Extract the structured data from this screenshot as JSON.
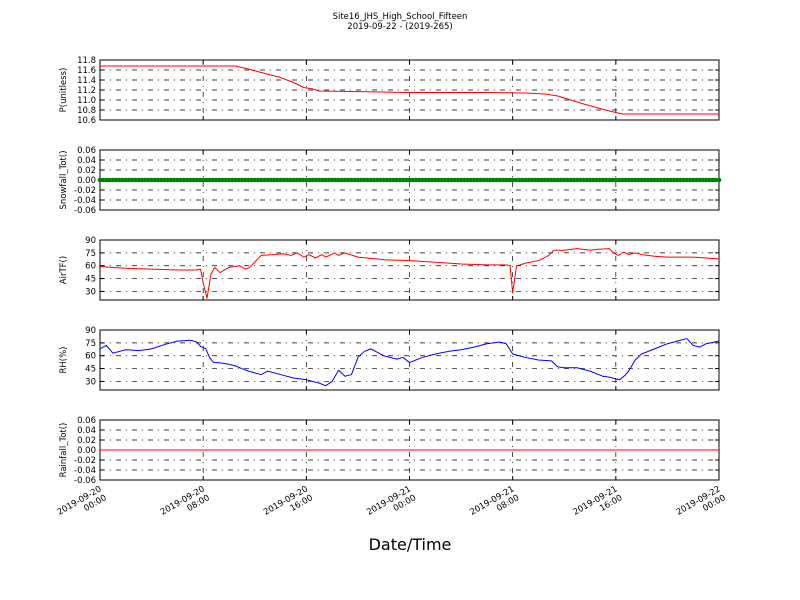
{
  "figure": {
    "title_line1": "Site16_JHS_High_School_Fifteen",
    "title_line2": "2019-09-22 - (2019-265)",
    "xlabel": "Date/Time"
  },
  "x_ticks": [
    {
      "line1": "2019-09-20",
      "line2": "00:00",
      "hours": 0
    },
    {
      "line1": "2019-09-20",
      "line2": "08:00",
      "hours": 8
    },
    {
      "line1": "2019-09-20",
      "line2": "16:00",
      "hours": 16
    },
    {
      "line1": "2019-09-21",
      "line2": "00:00",
      "hours": 24
    },
    {
      "line1": "2019-09-21",
      "line2": "08:00",
      "hours": 32
    },
    {
      "line1": "2019-09-21",
      "line2": "16:00",
      "hours": 40
    },
    {
      "line1": "2019-09-22",
      "line2": "00:00",
      "hours": 48
    }
  ],
  "colors": {
    "red": "#ff0000",
    "green": "#008000",
    "blue": "#0000ff",
    "grid": "#000000"
  },
  "chart_data": [
    {
      "type": "line",
      "ylabel": "P(unitless)",
      "ylim": [
        10.6,
        11.8
      ],
      "yticks": [
        "11.8",
        "11.6",
        "11.4",
        "11.2",
        "11.0",
        "10.8",
        "10.6"
      ],
      "grid": true,
      "series": [
        {
          "color": "#ff0000",
          "x": [
            0,
            10.5,
            11.5,
            12.5,
            14,
            15,
            15.8,
            16.5,
            17,
            24,
            30,
            33,
            34.5,
            35.5,
            36.5,
            37.5,
            38.5,
            39.5,
            40.5,
            48
          ],
          "y": [
            11.68,
            11.68,
            11.62,
            11.55,
            11.45,
            11.35,
            11.25,
            11.22,
            11.18,
            11.15,
            11.15,
            11.14,
            11.12,
            11.08,
            11.0,
            10.92,
            10.85,
            10.78,
            10.72,
            10.72
          ]
        }
      ]
    },
    {
      "type": "scatter",
      "ylabel": "Snowfall_Tot()",
      "ylim": [
        -0.06,
        0.06
      ],
      "yticks": [
        "0.06",
        "0.04",
        "0.02",
        "0.00",
        "-0.02",
        "-0.04",
        "-0.06"
      ],
      "grid": true,
      "series": [
        {
          "color": "#008000",
          "x_start": 0,
          "x_end": 48,
          "step_hours": 0.25,
          "value": 0.0
        }
      ]
    },
    {
      "type": "line",
      "ylabel": "AirTF()",
      "ylim": [
        20,
        90
      ],
      "yticks": [
        "90",
        "75",
        "60",
        "45",
        "30"
      ],
      "grid": true,
      "series": [
        {
          "color": "#ff0000",
          "x": [
            0,
            2,
            4,
            6,
            7.5,
            7.8,
            8.0,
            8.3,
            8.6,
            8.9,
            9.3,
            10,
            10.8,
            11.3,
            11.6,
            12.5,
            13.5,
            14.2,
            14.8,
            15.3,
            15.8,
            16.2,
            16.7,
            17.2,
            17.5,
            17.8,
            18.2,
            18.5,
            19.0,
            20,
            22,
            24,
            26,
            28,
            30,
            31.5,
            31.8,
            32.0,
            32.3,
            32.6,
            33.0,
            34,
            34.8,
            35.2,
            36,
            37,
            38,
            38.5,
            39.5,
            39.8,
            40.2,
            40.6,
            41.0,
            41.5,
            42,
            43,
            44,
            46,
            48
          ],
          "y": [
            59,
            57,
            56,
            55,
            55,
            56,
            40,
            22,
            50,
            58,
            52,
            58,
            60,
            56,
            58,
            72,
            73,
            74,
            72,
            75,
            70,
            73,
            69,
            73,
            70,
            72,
            75,
            72,
            75,
            70,
            67,
            66,
            64,
            62,
            61,
            61,
            60,
            28,
            60,
            61,
            63,
            66,
            72,
            78,
            78,
            80,
            78,
            79,
            80,
            75,
            72,
            76,
            73,
            75,
            73,
            71,
            70,
            70,
            68
          ]
        }
      ]
    },
    {
      "type": "line",
      "ylabel": "RH(%)",
      "ylim": [
        20,
        90
      ],
      "yticks": [
        "90",
        "75",
        "60",
        "45",
        "30"
      ],
      "grid": true,
      "series": [
        {
          "color": "#0000ff",
          "x": [
            0,
            0.5,
            1,
            1.5,
            2,
            3,
            4,
            5,
            6,
            7,
            7.5,
            7.8,
            8.2,
            8.5,
            8.8,
            9.2,
            10,
            10.5,
            11,
            11.5,
            12,
            12.5,
            13,
            14,
            15,
            15.5,
            16,
            16.5,
            17,
            17.5,
            18,
            18.5,
            19,
            19.5,
            20,
            20.5,
            21,
            22,
            23,
            23.5,
            24,
            25,
            26,
            27,
            28,
            29,
            30,
            31,
            31.5,
            32,
            32.5,
            33,
            34,
            35,
            35.5,
            36,
            37,
            38,
            39,
            39.5,
            40,
            40.3,
            40.7,
            41,
            41.5,
            42,
            43,
            44,
            45,
            45.5,
            46,
            46.5,
            47,
            48
          ],
          "y": [
            68,
            72,
            63,
            65,
            67,
            66,
            68,
            73,
            77,
            78,
            76,
            71,
            68,
            58,
            52,
            52,
            50,
            48,
            45,
            42,
            40,
            38,
            42,
            38,
            34,
            33,
            32,
            30,
            28,
            25,
            30,
            43,
            36,
            38,
            58,
            65,
            68,
            60,
            56,
            58,
            52,
            58,
            62,
            65,
            67,
            70,
            74,
            76,
            74,
            62,
            60,
            58,
            55,
            54,
            47,
            46,
            46,
            42,
            36,
            35,
            33,
            32,
            37,
            42,
            55,
            62,
            68,
            74,
            78,
            80,
            72,
            70,
            74,
            77
          ]
        }
      ]
    },
    {
      "type": "line",
      "ylabel": "Rainfall_Tot()",
      "ylim": [
        -0.06,
        0.06
      ],
      "yticks": [
        "0.06",
        "0.04",
        "0.02",
        "0.00",
        "-0.02",
        "-0.04",
        "-0.06"
      ],
      "grid": true,
      "series": [
        {
          "color": "#ff0000",
          "x": [
            0,
            48
          ],
          "y": [
            0.0,
            0.0
          ]
        }
      ]
    }
  ]
}
